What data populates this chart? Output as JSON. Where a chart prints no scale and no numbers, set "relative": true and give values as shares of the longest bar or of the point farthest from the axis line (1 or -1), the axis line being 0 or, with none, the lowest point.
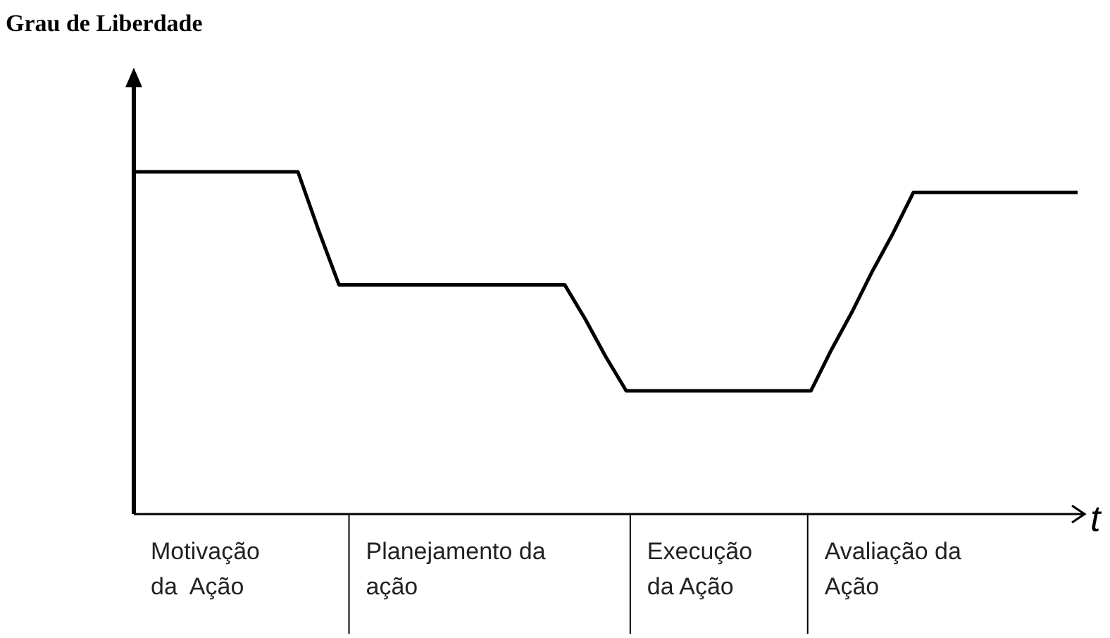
{
  "chart_data": {
    "type": "line",
    "relative": true,
    "xlabel": "t",
    "marker": "none",
    "line_style": "solid",
    "categories": [
      null,
      null,
      null,
      null,
      null,
      null,
      null,
      null,
      null,
      null,
      null,
      null,
      null,
      null,
      null,
      null,
      null,
      null,
      null,
      null,
      null,
      null,
      null,
      null,
      null,
      null,
      null,
      null,
      null,
      null,
      null,
      null,
      null,
      null,
      null,
      null,
      null,
      null,
      null,
      null,
      null,
      null,
      null,
      null,
      null,
      null,
      null
    ],
    "series": [
      {
        "color": "#000000",
        "values": [
          1,
          1,
          1,
          1,
          1,
          1,
          1,
          1,
          1,
          0.83,
          0.67,
          0.67,
          0.67,
          0.67,
          0.67,
          0.67,
          0.67,
          0.67,
          0.67,
          0.67,
          0.67,
          0.67,
          0.57,
          0.46,
          0.36,
          0.36,
          0.36,
          0.36,
          0.36,
          0.36,
          0.36,
          0.36,
          0.36,
          0.36,
          0.48,
          0.59,
          0.71,
          0.82,
          0.94,
          0.94,
          0.94,
          0.94,
          0.94,
          0.94,
          0.94,
          0.94,
          0.94
        ]
      }
    ],
    "annotations": [
      "Grau de Liberdade",
      "Motivação\nda  Ação",
      "Planejamento da\nação",
      "Execução\nda Ação",
      "Avaliação da\nAção"
    ]
  }
}
